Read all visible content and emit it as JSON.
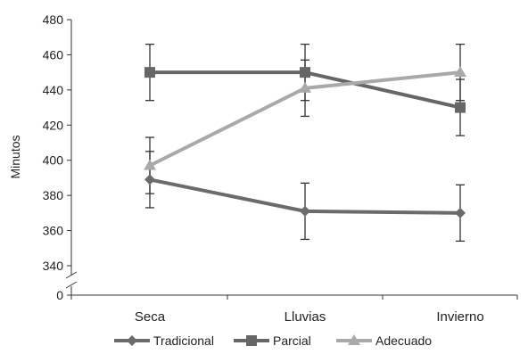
{
  "chart_data": {
    "type": "line",
    "title": "",
    "xlabel": "",
    "ylabel": "Minutos",
    "categories": [
      "Seca",
      "Lluvias",
      "Invierno"
    ],
    "ylim": [
      340,
      480
    ],
    "yticks": [
      340,
      360,
      380,
      400,
      420,
      440,
      460,
      480
    ],
    "axis_break": {
      "bottom_label": "0"
    },
    "grid": false,
    "legend_position": "bottom",
    "series": [
      {
        "name": "Tradicional",
        "marker": "diamond",
        "color": "#6b6b6b",
        "values": [
          389,
          371,
          370
        ],
        "error": [
          16,
          16,
          16
        ]
      },
      {
        "name": "Parcial",
        "marker": "square",
        "color": "#666666",
        "values": [
          450,
          450,
          430
        ],
        "error": [
          16,
          16,
          16
        ]
      },
      {
        "name": "Adecuado",
        "marker": "triangle",
        "color": "#a9a9a9",
        "values": [
          397,
          441,
          450
        ],
        "error": [
          16,
          16,
          16
        ]
      }
    ]
  }
}
